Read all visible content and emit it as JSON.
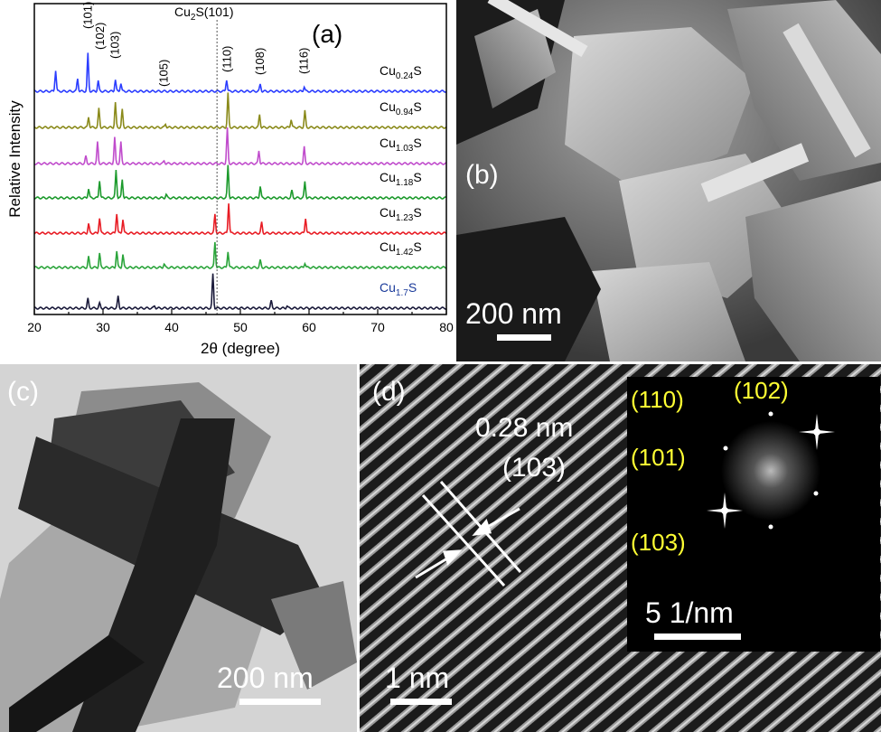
{
  "panel_a": {
    "label": "(a)",
    "ylabel": "Relative Intensity",
    "xlabel": "2θ (degree)",
    "xticks": [
      "20",
      "30",
      "40",
      "50",
      "60",
      "70",
      "80"
    ],
    "reference_label": "Cu",
    "reference_sub": "2",
    "reference_rest": "S(101)",
    "peak_labels": [
      "(101)",
      "(102)",
      "(103)",
      "(105)",
      "(110)",
      "(108)",
      "(116)"
    ]
  },
  "chart_data": {
    "type": "line",
    "xlabel": "2θ (degree)",
    "ylabel": "Relative Intensity",
    "xlim": [
      20,
      80
    ],
    "reference_line_x": 46.6,
    "peak_annotations": [
      {
        "label": "(101)",
        "x": 27.8
      },
      {
        "label": "(102)",
        "x": 29.6
      },
      {
        "label": "(103)",
        "x": 31.8
      },
      {
        "label": "(105)",
        "x": 38.9
      },
      {
        "label": "(110)",
        "x": 48.1
      },
      {
        "label": "(108)",
        "x": 52.9
      },
      {
        "label": "(116)",
        "x": 59.3
      }
    ],
    "series": [
      {
        "name_main": "Cu",
        "name_sub": "0.24",
        "name_end": "S",
        "color": "#2b3dff",
        "peaks": [
          [
            23.1,
            0.9
          ],
          [
            26.3,
            0.55
          ],
          [
            27.8,
            1.6
          ],
          [
            29.3,
            0.45
          ],
          [
            31.8,
            0.5
          ],
          [
            32.6,
            0.35
          ],
          [
            48.0,
            0.5
          ],
          [
            52.9,
            0.3
          ],
          [
            59.3,
            0.2
          ]
        ]
      },
      {
        "name_main": "Cu",
        "name_sub": "0.94",
        "name_end": "S",
        "color": "#8a8a1a",
        "peaks": [
          [
            27.9,
            0.45
          ],
          [
            29.4,
            0.8
          ],
          [
            31.8,
            1.05
          ],
          [
            32.8,
            0.75
          ],
          [
            39.1,
            0.15
          ],
          [
            48.2,
            1.45
          ],
          [
            52.8,
            0.55
          ],
          [
            57.4,
            0.35
          ],
          [
            59.4,
            0.7
          ]
        ]
      },
      {
        "name_main": "Cu",
        "name_sub": "1.03",
        "name_end": "S",
        "color": "#c04ccc",
        "peaks": [
          [
            27.5,
            0.3
          ],
          [
            29.2,
            0.9
          ],
          [
            31.7,
            1.1
          ],
          [
            32.6,
            0.9
          ],
          [
            38.9,
            0.12
          ],
          [
            48.1,
            1.5
          ],
          [
            52.7,
            0.55
          ],
          [
            59.3,
            0.7
          ]
        ]
      },
      {
        "name_main": "Cu",
        "name_sub": "1.18",
        "name_end": "S",
        "color": "#1c9a2c",
        "peaks": [
          [
            27.9,
            0.4
          ],
          [
            29.5,
            0.75
          ],
          [
            31.9,
            1.2
          ],
          [
            32.8,
            0.8
          ],
          [
            39.2,
            0.15
          ],
          [
            48.2,
            1.4
          ],
          [
            52.9,
            0.5
          ],
          [
            57.5,
            0.3
          ],
          [
            59.4,
            0.7
          ]
        ]
      },
      {
        "name_main": "Cu",
        "name_sub": "1.23",
        "name_end": "S",
        "color": "#e81c24",
        "peaks": [
          [
            27.9,
            0.4
          ],
          [
            29.5,
            0.65
          ],
          [
            32.0,
            0.85
          ],
          [
            32.9,
            0.6
          ],
          [
            46.3,
            0.8
          ],
          [
            48.3,
            1.3
          ],
          [
            53.1,
            0.45
          ],
          [
            59.5,
            0.65
          ]
        ]
      },
      {
        "name_main": "Cu",
        "name_sub": "1.42",
        "name_end": "S",
        "color": "#2aa43a",
        "peaks": [
          [
            27.9,
            0.45
          ],
          [
            29.5,
            0.6
          ],
          [
            32.0,
            0.7
          ],
          [
            32.9,
            0.55
          ],
          [
            38.9,
            0.15
          ],
          [
            46.3,
            1.1
          ],
          [
            48.2,
            0.7
          ],
          [
            52.9,
            0.3
          ],
          [
            59.4,
            0.2
          ]
        ]
      },
      {
        "name_main": "Cu",
        "name_sub": "1.7",
        "name_end": "S",
        "color": "#1a1a3a",
        "peaks": [
          [
            27.8,
            0.4
          ],
          [
            29.5,
            0.2
          ],
          [
            32.2,
            0.5
          ],
          [
            37.5,
            0.1
          ],
          [
            46.0,
            1.45
          ],
          [
            54.5,
            0.3
          ],
          [
            56.8,
            0.1
          ]
        ]
      }
    ]
  },
  "panel_b": {
    "label": "(b)",
    "scale": "200 nm"
  },
  "panel_c": {
    "label": "(c)",
    "scale": "200 nm"
  },
  "panel_d": {
    "label": "(d)",
    "scale": "1 nm",
    "spacing": "0.28 nm",
    "plane": "(103)",
    "fft_labels": [
      "(110)",
      "(102)",
      "(101)",
      "(103)"
    ],
    "fft_scale": "5 1/nm",
    "fft_label_color": "#ffff33"
  }
}
